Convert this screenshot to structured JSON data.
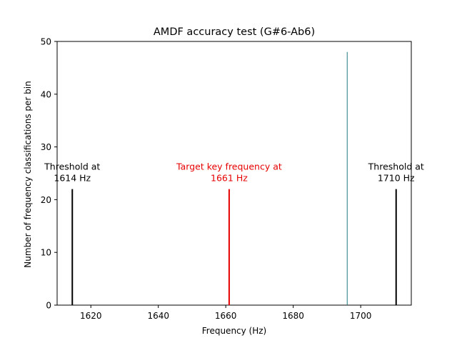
{
  "chart_data": {
    "type": "bar",
    "title": "AMDF accuracy test (G#6-Ab6)",
    "xlabel": "Frequency (Hz)",
    "ylabel": "Number of frequency classifications per bin",
    "xlim": [
      1610,
      1715
    ],
    "ylim": [
      0,
      50
    ],
    "x_ticks": [
      1620,
      1640,
      1660,
      1680,
      1700
    ],
    "y_ticks": [
      0,
      10,
      20,
      30,
      40,
      50
    ],
    "grid": false,
    "bars": [
      {
        "x": 1696,
        "value": 48,
        "color": "#1f7a80"
      }
    ],
    "markers": [
      {
        "x": 1614.5,
        "height": 22,
        "color": "#000000",
        "label_lines": [
          "Threshold at",
          "1614 Hz"
        ]
      },
      {
        "x": 1661,
        "height": 22,
        "color": "#e60000",
        "label_lines": [
          "Target key frequency at",
          "1661 Hz"
        ]
      },
      {
        "x": 1710.5,
        "height": 22,
        "color": "#000000",
        "label_lines": [
          "Threshold at",
          "1710 Hz"
        ]
      }
    ]
  }
}
